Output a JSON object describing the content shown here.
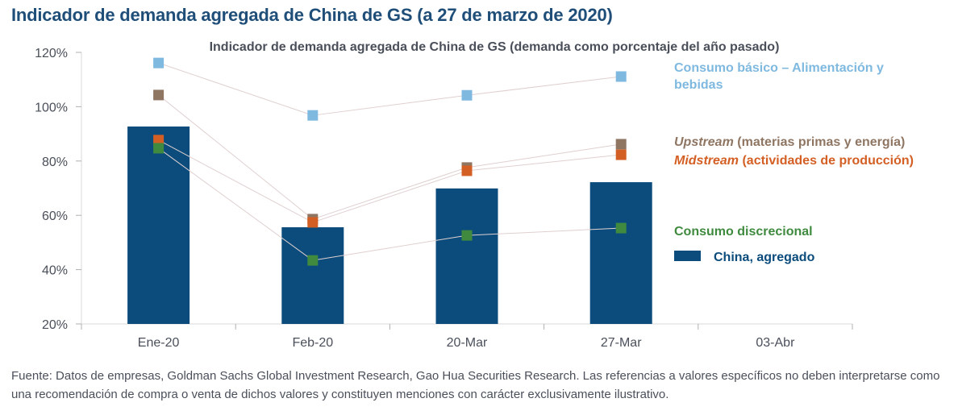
{
  "page": {
    "title": "Indicador de demanda agregada de China de GS (a 27 de marzo de 2020)",
    "footnote": "Fuente: Datos de empresas, Goldman Sachs Global Investment Research, Gao Hua Securities Research. Las referencias a valores específicos no deben interpretarse como una recomendación de compra o venta de dichos valores y constituyen menciones con carácter exclusivamente ilustrativo."
  },
  "chart_data": {
    "type": "bar",
    "title": "Indicador de demanda agregada de China de GS (demanda como porcentaje del año pasado)",
    "xlabel": "",
    "ylabel": "",
    "categories": [
      "Ene-20",
      "Feb-20",
      "20-Mar",
      "27-Mar",
      "03-Abr"
    ],
    "ylim": [
      20,
      120
    ],
    "yticks": [
      20,
      40,
      60,
      80,
      100,
      120
    ],
    "ytick_labels": [
      "20%",
      "40%",
      "60%",
      "80%",
      "100%",
      "120%"
    ],
    "grid": false,
    "legend_position": "right",
    "bar_series": {
      "name": "China, agregado",
      "color": "#0b4c7c",
      "values": [
        92.7,
        55.6,
        69.9,
        72.2,
        null
      ]
    },
    "series": [
      {
        "name": "Consumo básico – Alimentación y bebidas",
        "name_italic": "",
        "name_rest": "Consumo básico – Alimentación y",
        "name_line2": "bebidas",
        "color": "#7fb9e0",
        "values": [
          116.1,
          96.8,
          104.2,
          111.1,
          null
        ]
      },
      {
        "name": "Upstream (materias primas y energía)",
        "name_italic": "Upstream",
        "name_rest": " (materias primas y energía)",
        "color": "#8f7663",
        "values": [
          104.3,
          58.6,
          77.6,
          86.2,
          null
        ]
      },
      {
        "name": "Midstream (actividades de producción)",
        "name_italic": "Midstream",
        "name_rest": " (actividades de producción)",
        "color": "#d45f24",
        "values": [
          87.7,
          57.4,
          76.4,
          82.3,
          null
        ]
      },
      {
        "name": "Consumo discrecional",
        "name_italic": "",
        "name_rest": "Consumo discrecional",
        "color": "#3f8a3f",
        "values": [
          84.7,
          43.4,
          52.6,
          55.3,
          null
        ]
      }
    ],
    "colors": {
      "axis": "#d9d9d9",
      "connector": "#e0d0d0",
      "text": "#4a4f5a"
    }
  }
}
